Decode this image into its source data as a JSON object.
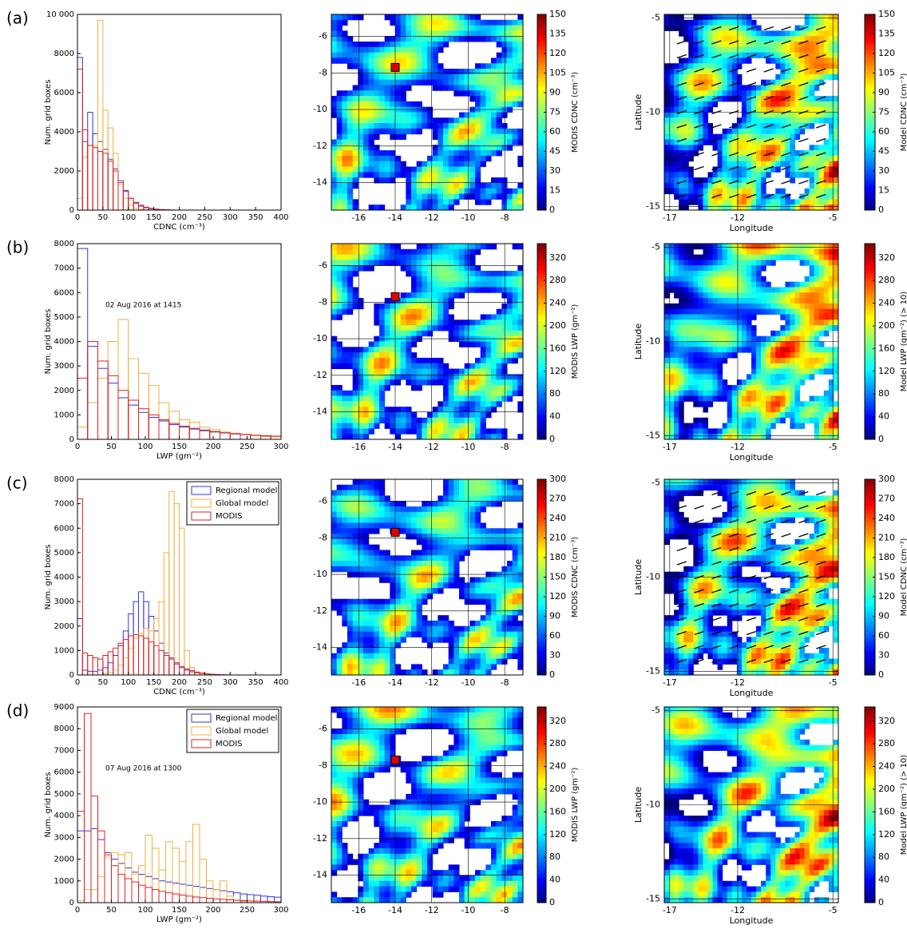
{
  "panel_labels": [
    "(a)",
    "(b)",
    "(c)",
    "(d)"
  ],
  "chart_data": [
    {
      "type": "histogram",
      "xlabel": "CDNC (cm⁻³)",
      "ylabel": "Num. grid boxes",
      "xlim": [
        0,
        400
      ],
      "ylim": [
        0,
        10000
      ],
      "xticks": [
        0,
        50,
        100,
        150,
        200,
        250,
        300,
        350,
        400
      ],
      "yticks": [
        0,
        2000,
        4000,
        6000,
        8000,
        {
          "value": 10000,
          "label": "10 000"
        }
      ],
      "series": [
        {
          "color": "#3333dd",
          "bins": [
            0,
            10,
            20,
            30,
            40,
            50,
            60,
            70,
            80,
            90,
            100,
            110,
            120,
            130,
            140,
            150,
            160,
            170,
            180,
            190,
            200
          ],
          "values": [
            7800,
            3500,
            5000,
            3900,
            3500,
            3100,
            2600,
            2100,
            1500,
            1000,
            600,
            350,
            200,
            120,
            70,
            40,
            20,
            10,
            5,
            0
          ]
        },
        {
          "color": "#f0b040",
          "bins": [
            0,
            10,
            20,
            30,
            40,
            50,
            60,
            70,
            80,
            90,
            100,
            110,
            120,
            130,
            140,
            150,
            160,
            170,
            180,
            190,
            200
          ],
          "values": [
            600,
            2700,
            3300,
            3300,
            9700,
            5100,
            4200,
            2900,
            1300,
            600,
            250,
            100,
            40,
            15,
            5,
            0,
            0,
            0,
            0,
            0
          ]
        },
        {
          "color": "#e02020",
          "bins": [
            0,
            10,
            20,
            30,
            40,
            50,
            60,
            70,
            80,
            90,
            100,
            110,
            120,
            130,
            140,
            150,
            160,
            170,
            180,
            190,
            200
          ],
          "values": [
            7200,
            4100,
            3300,
            3200,
            3000,
            2900,
            2500,
            2000,
            1400,
            950,
            600,
            400,
            250,
            150,
            90,
            50,
            30,
            15,
            5,
            0
          ]
        }
      ]
    },
    {
      "type": "map",
      "xlim": [
        -17.5,
        -7
      ],
      "ylim": [
        -15.5,
        -4.8
      ],
      "xticks": [
        -16,
        -14,
        -12,
        -10,
        -8
      ],
      "yticks": [
        -14,
        -12,
        -10,
        -8,
        -6
      ],
      "marker": [
        -14,
        -7.7
      ],
      "colorbar": {
        "label": "MODIS CDNC (cm⁻³)",
        "lim": [
          0,
          150
        ],
        "ticks": [
          0,
          15,
          30,
          45,
          60,
          75,
          90,
          105,
          120,
          135,
          150
        ]
      }
    },
    {
      "type": "map",
      "xlabel": "Longitude",
      "ylabel": "Latitude",
      "xlim": [
        -17.4,
        -4.6
      ],
      "ylim": [
        -15.2,
        -4.8
      ],
      "xticks": [
        -17,
        -12,
        -5
      ],
      "yticks": [
        -15,
        -10,
        -5
      ],
      "arrows": true,
      "colorbar": {
        "label": "Model CDNC (cm⁻³)",
        "lim": [
          0,
          150
        ],
        "ticks": [
          0,
          15,
          30,
          45,
          60,
          75,
          90,
          105,
          120,
          135,
          150
        ]
      }
    },
    {
      "type": "histogram",
      "xlabel": "LWP (gm⁻²)",
      "ylabel": "Num. grid boxes",
      "annotation": "02 Aug 2016 at 1415",
      "xlim": [
        0,
        300
      ],
      "ylim": [
        0,
        8000
      ],
      "xticks": [
        0,
        50,
        100,
        150,
        200,
        250,
        300
      ],
      "yticks": [
        0,
        1000,
        2000,
        3000,
        4000,
        5000,
        6000,
        7000,
        8000
      ],
      "series": [
        {
          "color": "#3333dd",
          "bins": [
            0,
            15,
            30,
            45,
            60,
            75,
            90,
            105,
            120,
            135,
            150,
            165,
            180,
            195,
            210,
            225,
            240,
            255,
            270,
            285,
            300
          ],
          "values": [
            7800,
            3800,
            2900,
            2300,
            1700,
            1400,
            1100,
            900,
            750,
            600,
            500,
            420,
            350,
            300,
            260,
            220,
            190,
            160,
            140,
            120
          ]
        },
        {
          "color": "#f0b040",
          "bins": [
            0,
            15,
            30,
            45,
            60,
            75,
            90,
            105,
            120,
            135,
            150,
            165,
            180,
            195,
            210,
            225,
            240,
            255,
            270,
            285,
            300
          ],
          "values": [
            500,
            1500,
            2500,
            4000,
            4900,
            3300,
            2700,
            2200,
            1500,
            1150,
            800,
            700,
            500,
            400,
            300,
            250,
            200,
            150,
            100,
            100
          ]
        },
        {
          "color": "#e02020",
          "bins": [
            0,
            15,
            30,
            45,
            60,
            75,
            90,
            105,
            120,
            135,
            150,
            165,
            180,
            195,
            210,
            225,
            240,
            255,
            270,
            285,
            300
          ],
          "values": [
            2500,
            4000,
            3200,
            2600,
            2000,
            1600,
            1250,
            1000,
            800,
            650,
            540,
            450,
            380,
            320,
            270,
            230,
            200,
            170,
            150,
            130
          ]
        }
      ]
    },
    {
      "type": "map",
      "xlim": [
        -17.5,
        -7
      ],
      "ylim": [
        -15.5,
        -4.8
      ],
      "xticks": [
        -16,
        -14,
        -12,
        -10,
        -8
      ],
      "yticks": [
        -14,
        -12,
        -10,
        -8,
        -6
      ],
      "marker": [
        -14,
        -7.7
      ],
      "colorbar": {
        "label": "MODIS LWP (gm⁻²)",
        "lim": [
          0,
          345
        ],
        "ticks": [
          0,
          40,
          80,
          120,
          160,
          200,
          240,
          280,
          320
        ]
      }
    },
    {
      "type": "map",
      "xlabel": "Longitude",
      "ylabel": "Latitude",
      "xlim": [
        -17.4,
        -4.6
      ],
      "ylim": [
        -15.2,
        -4.8
      ],
      "xticks": [
        -17,
        -12,
        -5
      ],
      "yticks": [
        -15,
        -10,
        -5
      ],
      "colorbar": {
        "label": "Model LWP (gm⁻²) (> 10)",
        "lim": [
          0,
          345
        ],
        "ticks": [
          0,
          40,
          80,
          120,
          160,
          200,
          240,
          280,
          320
        ]
      }
    },
    {
      "type": "histogram",
      "xlabel": "CDNC (cm⁻³)",
      "ylabel": "Num. grid boxes",
      "legend": "upper right",
      "xlim": [
        0,
        400
      ],
      "ylim": [
        0,
        8000
      ],
      "xticks": [
        0,
        50,
        100,
        150,
        200,
        250,
        300,
        350,
        400
      ],
      "yticks": [
        0,
        1000,
        2000,
        3000,
        4000,
        5000,
        6000,
        7000,
        8000
      ],
      "series": [
        {
          "name": "Regional model",
          "color": "#3333dd",
          "bins": [
            0,
            10,
            20,
            30,
            40,
            50,
            60,
            70,
            80,
            90,
            100,
            110,
            120,
            130,
            140,
            150,
            160,
            170,
            180,
            190,
            200,
            210,
            220,
            230,
            240,
            250,
            260,
            270,
            280,
            290,
            300,
            310,
            320
          ],
          "values": [
            2300,
            200,
            150,
            150,
            200,
            300,
            500,
            800,
            1200,
            1800,
            2500,
            3000,
            3400,
            3000,
            2400,
            1800,
            1300,
            900,
            700,
            450,
            300,
            200,
            130,
            80,
            50,
            30,
            20,
            10,
            5,
            0,
            0,
            0
          ]
        },
        {
          "name": "Global model",
          "color": "#f0b040",
          "bins": [
            0,
            10,
            20,
            30,
            40,
            50,
            60,
            70,
            80,
            90,
            100,
            110,
            120,
            130,
            140,
            150,
            160,
            170,
            180,
            190,
            200,
            210,
            220,
            230,
            240,
            250,
            260,
            270,
            280,
            290,
            300,
            310,
            320
          ],
          "values": [
            0,
            0,
            0,
            0,
            0,
            50,
            100,
            200,
            400,
            700,
            1100,
            1500,
            1700,
            1900,
            1800,
            2300,
            3000,
            5000,
            7500,
            7000,
            6000,
            1000,
            300,
            100,
            50,
            20,
            0,
            0,
            0,
            0,
            0,
            0
          ]
        },
        {
          "name": "MODIS",
          "color": "#e02020",
          "bins": [
            0,
            10,
            20,
            30,
            40,
            50,
            60,
            70,
            80,
            90,
            100,
            110,
            120,
            130,
            140,
            150,
            160,
            170,
            180,
            190,
            200,
            210,
            220,
            230,
            240,
            250,
            260,
            270,
            280,
            290,
            300,
            310,
            320
          ],
          "values": [
            7200,
            900,
            800,
            700,
            650,
            800,
            950,
            1100,
            1300,
            1450,
            1600,
            1650,
            1600,
            1500,
            1350,
            1200,
            1000,
            800,
            650,
            500,
            350,
            250,
            180,
            120,
            80,
            50,
            30,
            20,
            10,
            5,
            0,
            0
          ]
        }
      ]
    },
    {
      "type": "map",
      "xlim": [
        -17.5,
        -7
      ],
      "ylim": [
        -15.5,
        -4.8
      ],
      "xticks": [
        -16,
        -14,
        -12,
        -10,
        -8
      ],
      "yticks": [
        -14,
        -12,
        -10,
        -8,
        -6
      ],
      "marker": [
        -14,
        -7.7
      ],
      "colorbar": {
        "label": "MODIS CDNC (cm⁻³)",
        "lim": [
          0,
          300
        ],
        "ticks": [
          0,
          30,
          60,
          90,
          120,
          150,
          180,
          210,
          240,
          270,
          300
        ]
      }
    },
    {
      "type": "map",
      "xlabel": "Longitude",
      "ylabel": "Latitude",
      "xlim": [
        -17.4,
        -4.6
      ],
      "ylim": [
        -15.2,
        -4.8
      ],
      "xticks": [
        -17,
        -12,
        -5
      ],
      "yticks": [
        -15,
        -10,
        -5
      ],
      "arrows": true,
      "colorbar": {
        "label": "Model CDNC (cm⁻³)",
        "lim": [
          0,
          300
        ],
        "ticks": [
          0,
          30,
          60,
          90,
          120,
          150,
          180,
          210,
          240,
          270,
          300
        ]
      }
    },
    {
      "type": "histogram",
      "xlabel": "LWP (gm⁻²)",
      "ylabel": "Num. grid boxes",
      "annotation": "07 Aug 2016 at 1300",
      "legend": "upper right",
      "xlim": [
        0,
        300
      ],
      "ylim": [
        0,
        9000
      ],
      "xticks": [
        0,
        50,
        100,
        150,
        200,
        250,
        300
      ],
      "yticks": [
        0,
        1000,
        2000,
        3000,
        4000,
        5000,
        6000,
        7000,
        8000,
        9000
      ],
      "series": [
        {
          "name": "Regional model",
          "color": "#3333dd",
          "bins": [
            0,
            10,
            20,
            30,
            40,
            50,
            60,
            70,
            80,
            90,
            100,
            110,
            120,
            130,
            140,
            150,
            160,
            170,
            180,
            190,
            200,
            210,
            220,
            230,
            240,
            250,
            260,
            270,
            280,
            290,
            300
          ],
          "values": [
            3300,
            3300,
            3400,
            2900,
            2300,
            2000,
            1800,
            1600,
            1400,
            1300,
            1200,
            1100,
            1000,
            950,
            900,
            850,
            800,
            750,
            700,
            650,
            600,
            550,
            500,
            450,
            400,
            370,
            340,
            300,
            270,
            250
          ]
        },
        {
          "name": "Global model",
          "color": "#f0b040",
          "bins": [
            0,
            10,
            20,
            30,
            40,
            50,
            60,
            70,
            80,
            90,
            100,
            110,
            120,
            130,
            140,
            150,
            160,
            170,
            180,
            190,
            200,
            210,
            220,
            230,
            240,
            250,
            260,
            270,
            280,
            290,
            300
          ],
          "values": [
            100,
            600,
            600,
            1200,
            2100,
            2300,
            2200,
            2300,
            1300,
            1700,
            3100,
            2500,
            1500,
            2800,
            2500,
            1900,
            2800,
            3600,
            2000,
            1000,
            600,
            1000,
            300,
            100,
            50,
            0,
            0,
            0,
            0,
            0
          ]
        },
        {
          "name": "MODIS",
          "color": "#e02020",
          "bins": [
            0,
            10,
            20,
            30,
            40,
            50,
            60,
            70,
            80,
            90,
            100,
            110,
            120,
            130,
            140,
            150,
            160,
            170,
            180,
            190,
            200,
            210,
            220,
            230,
            240,
            250,
            260,
            270,
            280,
            290,
            300
          ],
          "values": [
            4200,
            8700,
            4900,
            3300,
            2200,
            1700,
            1300,
            1100,
            950,
            800,
            700,
            600,
            520,
            450,
            400,
            350,
            300,
            260,
            230,
            200,
            170,
            150,
            130,
            110,
            90,
            80,
            70,
            60,
            50,
            40
          ]
        }
      ]
    },
    {
      "type": "map",
      "xlim": [
        -17.5,
        -7
      ],
      "ylim": [
        -15.5,
        -4.8
      ],
      "xticks": [
        -16,
        -14,
        -12,
        -10,
        -8
      ],
      "yticks": [
        -14,
        -12,
        -10,
        -8,
        -6
      ],
      "marker": [
        -14,
        -7.7
      ],
      "colorbar": {
        "label": "MODIS LWP (gm⁻²)",
        "lim": [
          0,
          345
        ],
        "ticks": [
          0,
          40,
          80,
          120,
          160,
          200,
          240,
          280,
          320
        ]
      }
    },
    {
      "type": "map",
      "xlabel": "Longitude",
      "ylabel": "Latitude",
      "xlim": [
        -17.4,
        -4.6
      ],
      "ylim": [
        -15.2,
        -4.8
      ],
      "xticks": [
        -17,
        -12,
        -5
      ],
      "yticks": [
        -15,
        -10,
        -5
      ],
      "colorbar": {
        "label": "Model LWP (gm⁻²) (> 10)",
        "lim": [
          0,
          345
        ],
        "ticks": [
          0,
          40,
          80,
          120,
          160,
          200,
          240,
          280,
          320
        ]
      }
    }
  ]
}
